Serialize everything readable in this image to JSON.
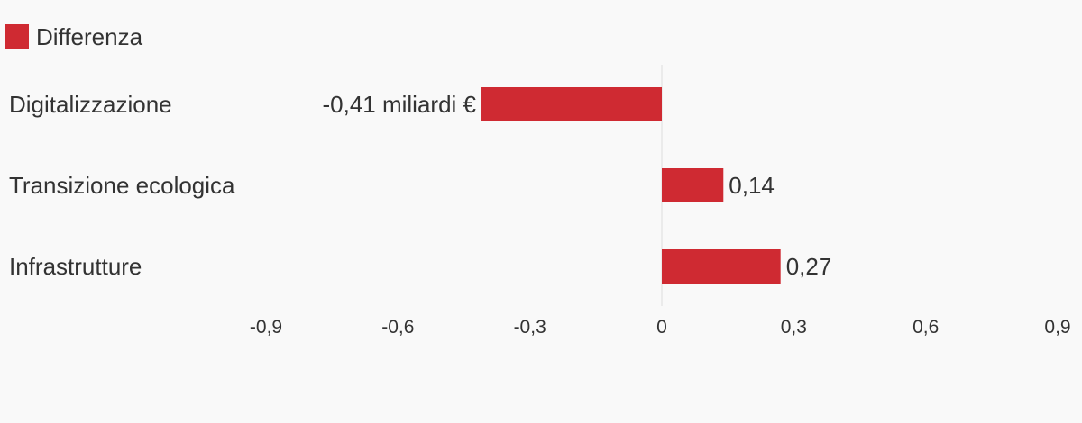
{
  "chart_data": {
    "type": "bar",
    "orientation": "horizontal",
    "categories": [
      "Digitalizzazione",
      "Transizione ecologica",
      "Infrastrutture"
    ],
    "series": [
      {
        "name": "Differenza",
        "values": [
          -0.41,
          0.14,
          0.27
        ],
        "value_labels": [
          "-0,41 miliardi €",
          "0,14",
          "0,27"
        ],
        "color": "#cf2a32"
      }
    ],
    "xlim": [
      -0.9,
      0.9
    ],
    "xticks": [
      -0.9,
      -0.6,
      -0.3,
      0,
      0.3,
      0.6,
      0.9
    ],
    "xtick_labels": [
      "-0,9",
      "-0,6",
      "-0,3",
      "0",
      "0,3",
      "0,6",
      "0,9"
    ],
    "legend_position": "top-left",
    "grid": false,
    "zero_line_color": "#dddddd"
  }
}
